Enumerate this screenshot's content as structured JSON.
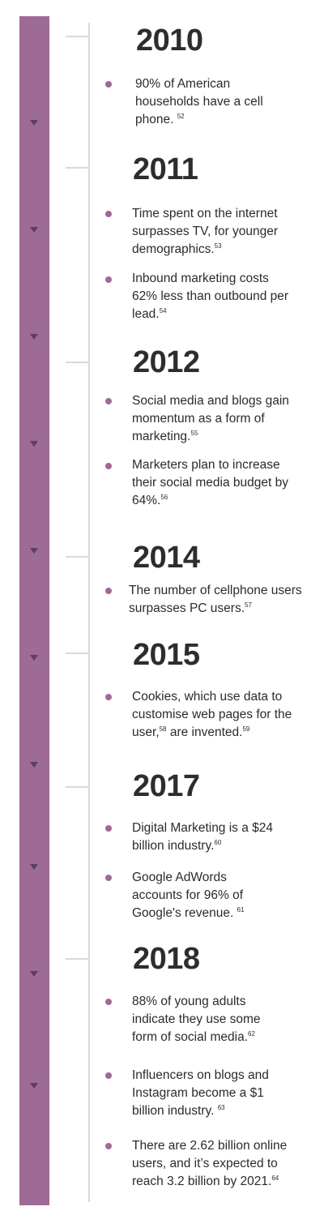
{
  "colors": {
    "bar": "#9e6a96",
    "bullet": "#9e6a96",
    "connector": "#d9d9d9",
    "text": "#2b2b2b"
  },
  "icons": {
    "arrow": "triangle-down-icon",
    "bullet": "bullet-dot-icon"
  },
  "years": [
    {
      "year": "2010",
      "items": [
        {
          "text": "90% of American households have a cell phone.",
          "ref": "52"
        }
      ]
    },
    {
      "year": "2011",
      "items": [
        {
          "text": "Time spent on the internet surpasses TV, for younger demographics.",
          "ref": "53"
        },
        {
          "text": "Inbound marketing costs 62% less than outbound per lead.",
          "ref": "54"
        }
      ]
    },
    {
      "year": "2012",
      "items": [
        {
          "text": "Social media and blogs gain momentum as a form of marketing.",
          "ref": "55"
        },
        {
          "text": "Marketers plan to increase their social media budget by 64%.",
          "ref": "56"
        }
      ]
    },
    {
      "year": "2014",
      "items": [
        {
          "text": "The number of cellphone users surpasses PC users.",
          "ref": "57"
        }
      ]
    },
    {
      "year": "2015",
      "items": [
        {
          "text_a": "Cookies, which use data to customise web pages for the user,",
          "ref_a": "58",
          "text_b": " are invented.",
          "ref": "59"
        }
      ]
    },
    {
      "year": "2017",
      "items": [
        {
          "text": "Digital Marketing is a $24 billion industry.",
          "ref": "60"
        },
        {
          "text": "Google AdWords accounts for 96% of Google's revenue.",
          "ref": "61"
        }
      ]
    },
    {
      "year": "2018",
      "items": [
        {
          "text": "88% of young adults indicate they use some form of social media.",
          "ref": "62"
        },
        {
          "text": "Influencers on blogs and Instagram become a $1 billion industry.",
          "ref": "63"
        },
        {
          "text": "There are 2.62 billion online users, and it’s expected to reach 3.2 billion by 2021.",
          "ref": "64"
        }
      ]
    }
  ]
}
